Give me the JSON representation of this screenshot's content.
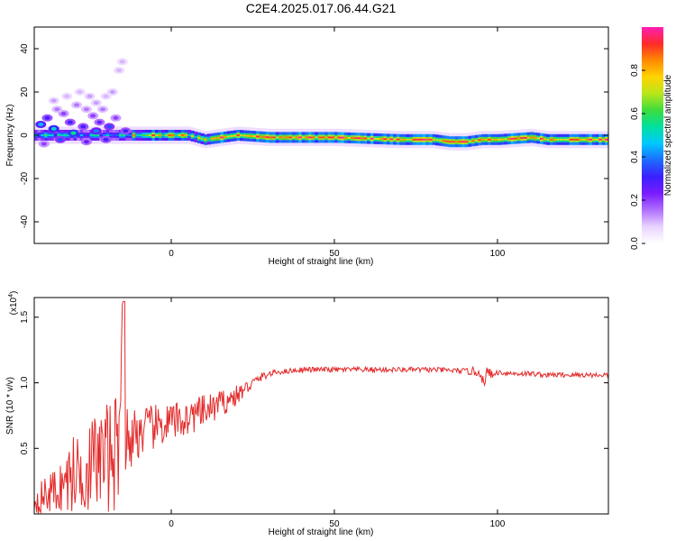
{
  "title": "C2E4.2025.017.06.44.G21",
  "colors": {
    "line": "#e32b2b",
    "axis": "#000000",
    "colormap": [
      "#ffffff",
      "#e9d4ff",
      "#b070ff",
      "#7a1cff",
      "#3b1fff",
      "#1d6bff",
      "#00c8ff",
      "#00e0a0",
      "#3ddc3d",
      "#b8e61a",
      "#ffd400",
      "#ff8a00",
      "#ff2a2a",
      "#ff1fb4"
    ]
  },
  "chart_data": [
    {
      "type": "heatmap",
      "xlabel": "Height of straight line (km)",
      "ylabel": "Frequency (Hz)",
      "xlim": [
        -42,
        134
      ],
      "ylim": [
        -50,
        50
      ],
      "xticks": [
        0,
        50,
        100
      ],
      "yticks": [
        -40,
        -20,
        0,
        20,
        40
      ],
      "colorbar": {
        "label": "Normalized spectral amplitude",
        "range": [
          0,
          1
        ],
        "ticks": [
          0.0,
          0.2,
          0.4,
          0.6,
          0.8
        ]
      },
      "ridge": [
        [
          -42,
          0
        ],
        [
          -10,
          0
        ],
        [
          -5,
          0
        ],
        [
          5,
          0
        ],
        [
          10,
          -2
        ],
        [
          20,
          0
        ],
        [
          30,
          -1
        ],
        [
          50,
          -1
        ],
        [
          70,
          -2
        ],
        [
          80,
          -2
        ],
        [
          85,
          -3
        ],
        [
          90,
          -3
        ],
        [
          95,
          -2
        ],
        [
          100,
          -2
        ],
        [
          110,
          -1
        ],
        [
          115,
          -2
        ],
        [
          134,
          -2
        ]
      ],
      "cells": [
        [
          -40,
          5,
          0.45
        ],
        [
          -38,
          8,
          0.3
        ],
        [
          -36,
          3,
          0.5
        ],
        [
          -34,
          -2,
          0.35
        ],
        [
          -33,
          10,
          0.2
        ],
        [
          -31,
          6,
          0.3
        ],
        [
          -30,
          1,
          0.55
        ],
        [
          -29,
          14,
          0.15
        ],
        [
          -27,
          4,
          0.3
        ],
        [
          -26,
          -3,
          0.25
        ],
        [
          -25,
          18,
          0.12
        ],
        [
          -24,
          9,
          0.2
        ],
        [
          -23,
          2,
          0.4
        ],
        [
          -22,
          6,
          0.25
        ],
        [
          -21,
          12,
          0.15
        ],
        [
          -20,
          -2,
          0.3
        ],
        [
          -19,
          4,
          0.35
        ],
        [
          -18,
          20,
          0.12
        ],
        [
          -17,
          8,
          0.2
        ],
        [
          -16,
          30,
          0.1
        ],
        [
          -15,
          34,
          0.1
        ],
        [
          -14,
          2,
          0.3
        ],
        [
          -36,
          16,
          0.12
        ],
        [
          -32,
          18,
          0.1
        ],
        [
          -28,
          20,
          0.1
        ],
        [
          -26,
          12,
          0.15
        ],
        [
          -39,
          -4,
          0.2
        ],
        [
          -35,
          12,
          0.15
        ],
        [
          -23,
          15,
          0.12
        ],
        [
          -20,
          18,
          0.1
        ]
      ]
    },
    {
      "type": "line",
      "xlabel": "Height of straight line (km)",
      "ylabel": "SNR (10 * v/v)",
      "y_multiplier": "(x10",
      "y_multiplier_exp": "4",
      "xlim": [
        -42,
        134
      ],
      "ylim": [
        0,
        1.65
      ],
      "xticks": [
        0,
        50,
        100
      ],
      "yticks": [
        0.5,
        1.0,
        1.5
      ],
      "ytick_labels": [
        "0.5",
        "1.0",
        "1.5"
      ],
      "series": [
        {
          "x": [
            -42,
            -38,
            -34,
            -30,
            -26,
            -22,
            -18,
            -16,
            -15,
            -14,
            -13,
            -12,
            -10,
            -6,
            -2,
            0,
            4,
            8,
            12,
            16,
            20,
            24,
            28,
            32,
            36,
            40,
            50,
            60,
            70,
            80,
            90,
            95,
            96,
            97,
            98,
            100,
            105,
            110,
            115,
            120,
            125,
            130,
            134
          ],
          "y": [
            0.1,
            0.15,
            0.2,
            0.3,
            0.35,
            0.42,
            0.45,
            0.5,
            1.6,
            0.5,
            0.55,
            0.6,
            0.62,
            0.65,
            0.68,
            0.7,
            0.72,
            0.76,
            0.8,
            0.85,
            0.9,
            0.98,
            1.05,
            1.08,
            1.09,
            1.1,
            1.1,
            1.1,
            1.1,
            1.1,
            1.09,
            1.08,
            0.95,
            1.12,
            1.05,
            1.08,
            1.07,
            1.07,
            1.06,
            1.06,
            1.06,
            1.06,
            1.06
          ],
          "noise": [
            0.1,
            0.15,
            0.2,
            0.3,
            0.35,
            0.4,
            0.45,
            0.4,
            0.0,
            0.35,
            0.3,
            0.25,
            0.2,
            0.18,
            0.16,
            0.15,
            0.14,
            0.13,
            0.12,
            0.1,
            0.08,
            0.05,
            0.03,
            0.02,
            0.02,
            0.02,
            0.02,
            0.02,
            0.02,
            0.02,
            0.02,
            0.05,
            0.05,
            0.05,
            0.04,
            0.02,
            0.02,
            0.02,
            0.02,
            0.02,
            0.02,
            0.02,
            0.02
          ]
        }
      ]
    }
  ]
}
